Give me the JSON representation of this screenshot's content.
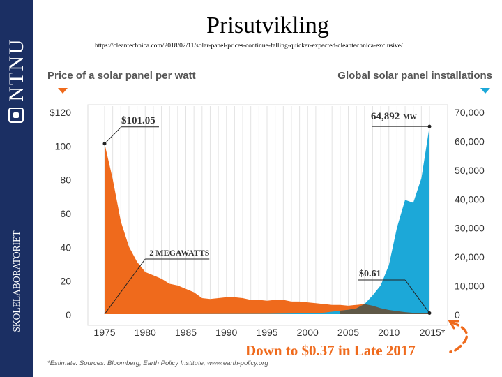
{
  "sidebar": {
    "brand": "NTNU",
    "lab": "SKOLELABORATORIET"
  },
  "header": {
    "title": "Prisutvikling",
    "source_url": "https://cleantechnica.com/2018/02/11/solar-panel-prices-continue-falling-quicker-expected-cleantechnica-exclusive/"
  },
  "colors": {
    "sidebar": "#1b2f63",
    "price": "#ef6a1c",
    "installs": "#1ca8d8",
    "overlap": "#6b4a2e",
    "highlight": "#ef6a1c"
  },
  "chart_data": {
    "type": "area",
    "title_left": "Price of a solar panel per watt",
    "title_right": "Global solar panel installations",
    "x_ticks": [
      "1975",
      "1980",
      "1985",
      "1990",
      "1995",
      "2000",
      "2005",
      "2010",
      "2015*"
    ],
    "left_axis": {
      "ylim": [
        0,
        120
      ],
      "ticks": [
        "0",
        "20",
        "40",
        "60",
        "80",
        "100",
        "$120"
      ]
    },
    "right_axis": {
      "ylim": [
        0,
        70000
      ],
      "ticks": [
        "0",
        "10,000",
        "20,000",
        "30,000",
        "40,000",
        "50,000",
        "60,000",
        "70,000"
      ]
    },
    "series": [
      {
        "name": "Price per watt ($)",
        "axis": "left",
        "x": [
          1975,
          1976,
          1977,
          1978,
          1979,
          1980,
          1981,
          1982,
          1983,
          1984,
          1985,
          1986,
          1987,
          1988,
          1989,
          1990,
          1991,
          1992,
          1993,
          1994,
          1995,
          1996,
          1997,
          1998,
          1999,
          2000,
          2001,
          2002,
          2003,
          2004,
          2005,
          2006,
          2007,
          2008,
          2009,
          2010,
          2011,
          2012,
          2013,
          2014,
          2015
        ],
        "values": [
          101.05,
          80,
          55,
          40,
          31,
          25,
          23,
          21,
          18,
          17,
          15,
          13,
          9.5,
          9,
          9.5,
          10,
          10,
          9.5,
          8.5,
          8.5,
          8,
          8.5,
          8.5,
          7.5,
          7.5,
          7,
          6.5,
          6,
          5.5,
          5.5,
          5,
          5.5,
          6,
          5,
          3.5,
          2.5,
          1.8,
          1.2,
          0.8,
          0.7,
          0.61
        ]
      },
      {
        "name": "Installations (MW)",
        "axis": "right",
        "x": [
          1975,
          1980,
          1985,
          1990,
          1995,
          2000,
          2002,
          2004,
          2005,
          2006,
          2007,
          2008,
          2009,
          2010,
          2011,
          2012,
          2013,
          2014,
          2015
        ],
        "values": [
          2,
          10,
          30,
          60,
          100,
          300,
          500,
          1200,
          1500,
          2000,
          3500,
          6500,
          10000,
          17000,
          30000,
          39500,
          38500,
          47000,
          64892
        ]
      }
    ],
    "annotations": [
      {
        "text": "$101.05"
      },
      {
        "text": "64,892",
        "unit": "MW"
      },
      {
        "text": "2 MEGAWATTS"
      },
      {
        "text": "$0.61"
      }
    ],
    "callout": "Down to $0.37 in Late 2017",
    "footnote": "*Estimate. Sources: Bloomberg, Earth Policy Institute, www.earth-policy.org"
  }
}
